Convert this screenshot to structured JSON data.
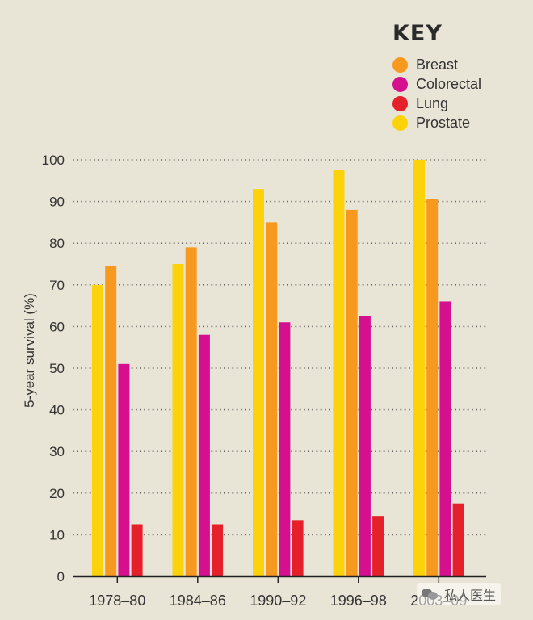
{
  "key_title": "KEY",
  "legend": [
    {
      "label": "Breast",
      "color": "#f7991f"
    },
    {
      "label": "Colorectal",
      "color": "#d4108f"
    },
    {
      "label": "Lung",
      "color": "#e5202b"
    },
    {
      "label": "Prostate",
      "color": "#fcd20a"
    }
  ],
  "watermark": "私人医生",
  "chart_data": {
    "type": "bar",
    "ylabel": "5-year survival (%)",
    "xlabel": "",
    "ylim": [
      0,
      100
    ],
    "yticks": [
      0,
      10,
      20,
      30,
      40,
      50,
      60,
      70,
      80,
      90,
      100
    ],
    "grid": "horizontal dotted",
    "legend_position": "top-right",
    "categories": [
      "1978–80",
      "1984–86",
      "1990–92",
      "1996–98",
      "2003–09"
    ],
    "series": [
      {
        "name": "Prostate",
        "color": "#fcd20a",
        "values": [
          70,
          75,
          93,
          97.5,
          100
        ]
      },
      {
        "name": "Breast",
        "color": "#f7991f",
        "values": [
          74.5,
          79,
          85,
          88,
          90.5
        ]
      },
      {
        "name": "Colorectal",
        "color": "#d4108f",
        "values": [
          51,
          58,
          61,
          62.5,
          66
        ]
      },
      {
        "name": "Lung",
        "color": "#e5202b",
        "values": [
          12.5,
          12.5,
          13.5,
          14.5,
          17.5
        ]
      }
    ]
  }
}
